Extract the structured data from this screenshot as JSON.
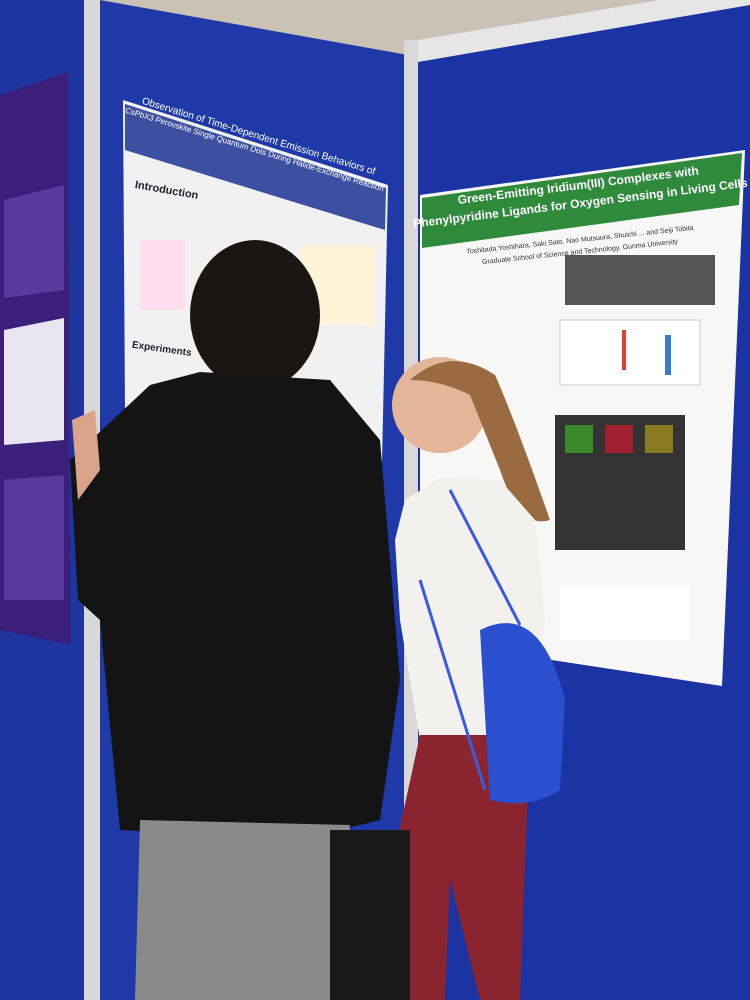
{
  "posters": [
    {
      "title_line1": "Observation of Time-Dependent Emission Behaviors of",
      "title_line2": "CsPbX3 Perovskite Single Quantum Dots During Halide-Exchange Reaction",
      "sections": [
        "Introduction",
        "Experiments"
      ]
    },
    {
      "title_line1": "Green-Emitting Iridium(III) Complexes with",
      "title_line2": "Phenylpyridine Ligands for Oxygen Sensing in Living Cells",
      "authors": "Toshitada Yoshihara, Saki Sato, Nao Mutsuura, Shuichi ... and Seiji Tobita",
      "affiliation": "Graduate School of Science and Technology, Gunma University"
    }
  ]
}
